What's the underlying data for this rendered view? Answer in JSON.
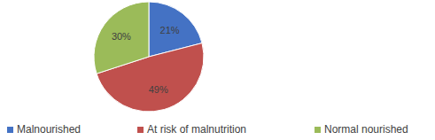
{
  "chart_data": {
    "type": "pie",
    "categories": [
      "Malnourished",
      "At risk of malnutrition",
      "Normal nourished"
    ],
    "values": [
      21,
      49,
      30
    ],
    "value_labels": [
      "21%",
      "49%",
      "30%"
    ],
    "colors": [
      "#4472c4",
      "#c0504d",
      "#9bbb59"
    ],
    "data_labels": true,
    "legend": "bottom"
  }
}
